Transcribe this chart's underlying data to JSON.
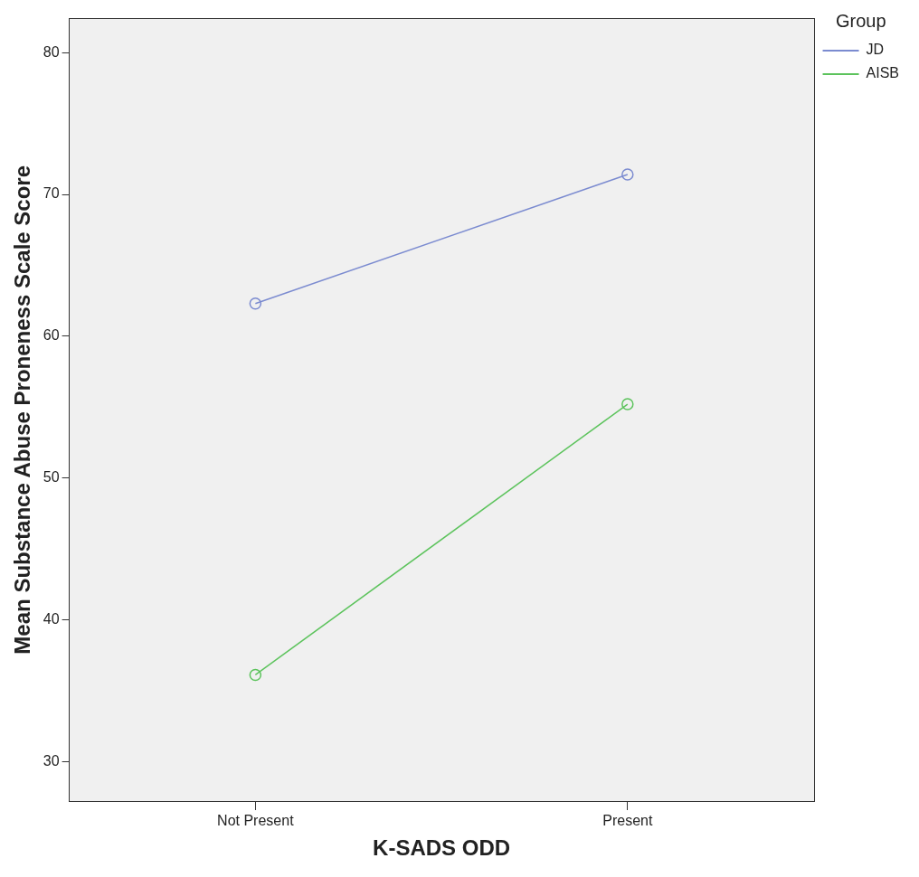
{
  "chart_data": {
    "type": "line",
    "xlabel": "K-SADS ODD",
    "ylabel": "Mean Substance Abuse Proneness Scale Score",
    "legend_title": "Group",
    "categories": [
      "Not Present",
      "Present"
    ],
    "series": [
      {
        "name": "JD",
        "color": "#7b8bd0",
        "values": [
          62.3,
          71.4
        ]
      },
      {
        "name": "AISB",
        "color": "#5cc35c",
        "values": [
          36.1,
          55.2
        ]
      }
    ],
    "ylim": [
      27.2,
      82.4
    ],
    "yticks": [
      30,
      40,
      50,
      60,
      70,
      80
    ],
    "grid": false,
    "legend": "top right",
    "marker": "circle",
    "line_style": "solid"
  }
}
